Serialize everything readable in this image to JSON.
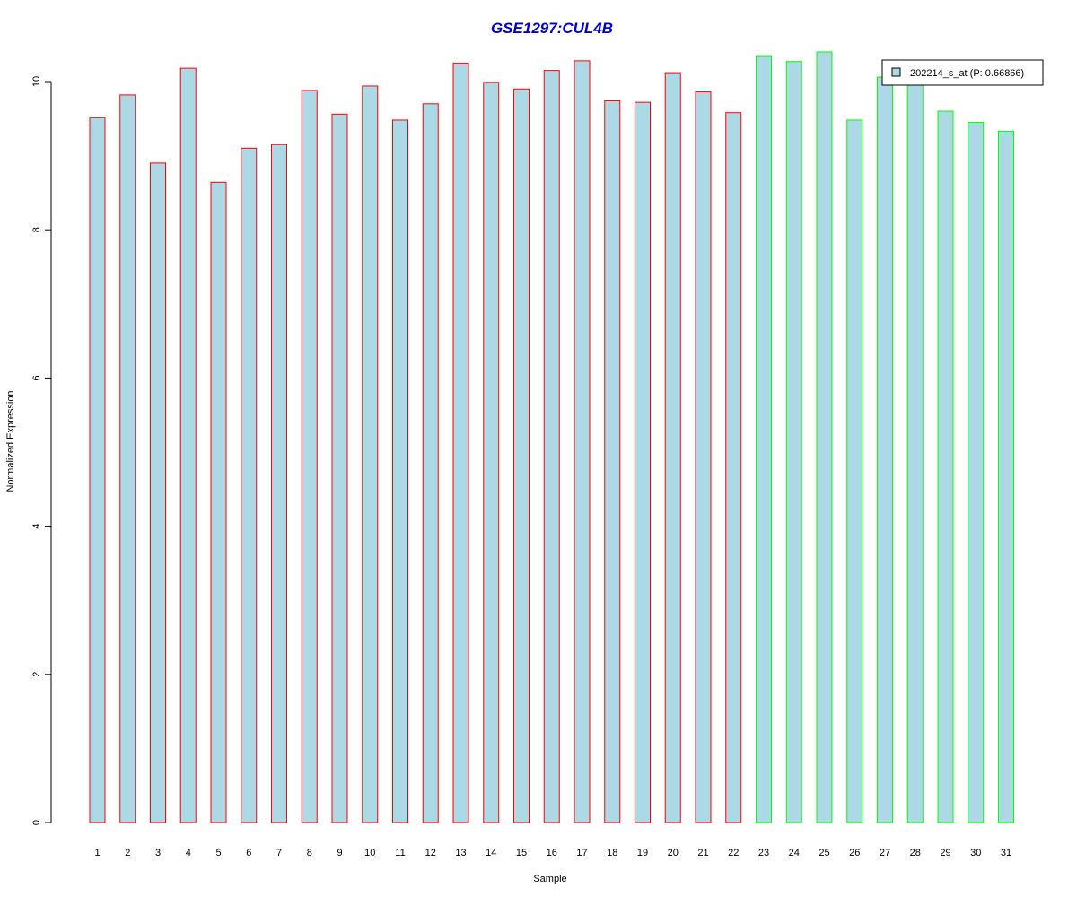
{
  "chart_data": {
    "type": "bar",
    "title": "GSE1297:CUL4B",
    "xlabel": "Sample",
    "ylabel": "Normalized Expression",
    "ylim": [
      0,
      10.5
    ],
    "yticks": [
      "0",
      "2",
      "4",
      "6",
      "8",
      "10"
    ],
    "categories": [
      "1",
      "2",
      "3",
      "4",
      "5",
      "6",
      "7",
      "8",
      "9",
      "10",
      "11",
      "12",
      "13",
      "14",
      "15",
      "16",
      "17",
      "18",
      "19",
      "20",
      "21",
      "22",
      "23",
      "24",
      "25",
      "26",
      "27",
      "28",
      "29",
      "30",
      "31"
    ],
    "series": [
      {
        "name": "202214_s_at (P: 0.66866)",
        "values": [
          9.52,
          9.82,
          8.9,
          10.18,
          8.64,
          9.1,
          9.15,
          9.88,
          9.56,
          9.94,
          9.48,
          9.7,
          10.25,
          9.99,
          9.9,
          10.15,
          10.28,
          9.74,
          9.72,
          10.12,
          9.86,
          9.58,
          10.35,
          10.27,
          10.4,
          9.48,
          10.06,
          10.02,
          9.6,
          9.45,
          9.33
        ]
      }
    ],
    "groups": [
      "red",
      "red",
      "red",
      "red",
      "red",
      "red",
      "red",
      "red",
      "red",
      "red",
      "red",
      "red",
      "red",
      "red",
      "red",
      "red",
      "red",
      "red",
      "red",
      "red",
      "red",
      "red",
      "green",
      "green",
      "green",
      "green",
      "green",
      "green",
      "green",
      "green",
      "green"
    ],
    "colors": {
      "fill": "#add8e6",
      "group_red": "#ff0000",
      "group_green": "#00ff00",
      "title": "#0000cd",
      "axis": "#000000"
    },
    "legend": {
      "label": "202214_s_at (P: 0.66866)",
      "placement": "top-right"
    }
  }
}
